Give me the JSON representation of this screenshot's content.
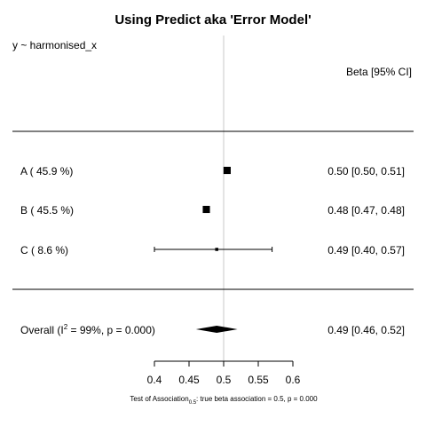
{
  "chart_data": {
    "type": "forest",
    "title": "Using Predict aka 'Error Model'",
    "model_label": "y ~ harmonised_x",
    "estimate_header": "Beta [95% CI]",
    "studies": [
      {
        "label": "A  ( 45.9 %)",
        "estimate": 0.505,
        "ci": [
          0.5,
          0.51
        ],
        "weight_pct": 45.9,
        "ci_text": "0.50 [0.50, 0.51]"
      },
      {
        "label": "B  ( 45.5 %)",
        "estimate": 0.475,
        "ci": [
          0.47,
          0.48
        ],
        "weight_pct": 45.5,
        "ci_text": "0.48 [0.47, 0.48]"
      },
      {
        "label": "C  ( 8.6 %)",
        "estimate": 0.49,
        "ci": [
          0.4,
          0.57
        ],
        "weight_pct": 8.6,
        "ci_text": "0.49 [0.40, 0.57]"
      }
    ],
    "overall": {
      "label_prefix": "Overall (I",
      "label_sup": "2",
      "label_suffix": " = 99%, p = 0.000)",
      "estimate": 0.49,
      "ci": [
        0.46,
        0.52
      ],
      "ci_text": "0.49 [0.46, 0.52]"
    },
    "reference_line": 0.5,
    "xlim": [
      0.4,
      0.6
    ],
    "xticks": [
      0.4,
      0.45,
      0.5,
      0.55,
      0.6
    ],
    "xtick_labels": [
      "0.4",
      "0.45",
      "0.5",
      "0.55",
      "0.6"
    ],
    "footer": {
      "prefix": "Test of Association",
      "subscript": "0.5",
      "suffix": ": true beta association = 0.5, p = 0.000"
    },
    "colors": {
      "ink": "#000000",
      "reference": "#c8c8c8",
      "background": "#ffffff"
    }
  }
}
